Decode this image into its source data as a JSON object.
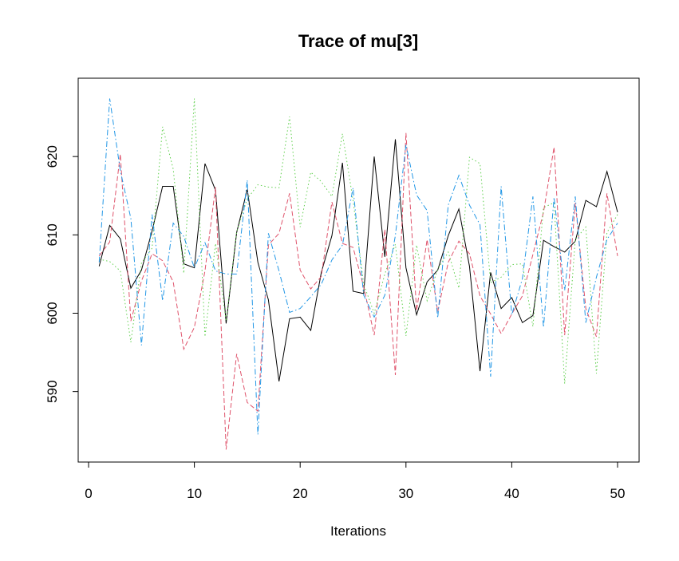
{
  "chart_data": {
    "type": "line",
    "title": "Trace of mu[3]",
    "xlabel": "Iterations",
    "ylabel": "",
    "xlim": [
      0,
      50
    ],
    "ylim": [
      581,
      630
    ],
    "xticks": [
      0,
      10,
      20,
      30,
      40,
      50
    ],
    "yticks": [
      590,
      600,
      610,
      620
    ],
    "grid": false,
    "x": [
      1,
      2,
      3,
      4,
      5,
      6,
      7,
      8,
      9,
      10,
      11,
      12,
      13,
      14,
      15,
      16,
      17,
      18,
      19,
      20,
      21,
      22,
      23,
      24,
      25,
      26,
      27,
      28,
      29,
      30,
      31,
      32,
      33,
      34,
      35,
      36,
      37,
      38,
      39,
      40,
      41,
      42,
      43,
      44,
      45,
      46,
      47,
      48,
      49,
      50
    ],
    "series": [
      {
        "color": "#000000",
        "dash": "solid",
        "values": [
          606,
          611.2,
          609.5,
          603.2,
          605.5,
          610.5,
          616.2,
          616.2,
          606.3,
          605.8,
          619.1,
          615.7,
          598.7,
          610.3,
          615.8,
          606.5,
          601.7,
          591.3,
          599.3,
          599.5,
          597.8,
          605.2,
          609.9,
          619.2,
          602.8,
          602.5,
          620.0,
          607.2,
          622.2,
          605.8,
          599.8,
          604.0,
          605.5,
          609.9,
          613.3,
          606.0,
          592.6,
          605.2,
          600.6,
          602.0,
          598.8,
          599.7,
          609.3,
          608.5,
          607.8,
          609.2,
          614.4,
          613.6,
          618.1,
          612.9
        ]
      },
      {
        "color": "#DF536B",
        "dash": "dashed",
        "values": [
          607.3,
          609.1,
          620.3,
          599.0,
          604.1,
          607.6,
          606.7,
          604.0,
          595.4,
          598.2,
          605.4,
          616.1,
          582.6,
          594.8,
          588.6,
          587.5,
          608.7,
          610.2,
          615.3,
          605.5,
          603.1,
          604.7,
          614.2,
          608.9,
          608.4,
          603.4,
          597.2,
          610.7,
          592.1,
          623.0,
          600.3,
          609.4,
          600.2,
          606.5,
          609.2,
          607.6,
          602.2,
          599.9,
          597.4,
          599.9,
          602.2,
          607.5,
          612.9,
          621.2,
          597.2,
          614.1,
          600.6,
          597.0,
          615.3,
          607.3
        ]
      },
      {
        "color": "#61D04F",
        "dash": "dotted",
        "values": [
          606.9,
          606.6,
          605.4,
          596.3,
          606.4,
          608.3,
          623.8,
          618.4,
          605.1,
          627.4,
          597.0,
          608.9,
          599.0,
          610.4,
          614.6,
          616.4,
          616.1,
          616.0,
          625.1,
          611.0,
          618.0,
          616.8,
          614.9,
          622.9,
          614.4,
          603.7,
          600.0,
          605.0,
          608.8,
          597.1,
          608.7,
          601.6,
          605.6,
          607.8,
          603.2,
          619.9,
          619.1,
          603.9,
          604.6,
          606.2,
          606.3,
          598.3,
          613.5,
          614.1,
          591.0,
          609.4,
          611.0,
          592.3,
          610.3,
          612.6
        ]
      },
      {
        "color": "#2297E6",
        "dash": "dashdot",
        "values": [
          606.5,
          627.4,
          618.2,
          612.1,
          595.9,
          612.6,
          601.6,
          611.5,
          609.8,
          605.8,
          609.0,
          605.4,
          605.0,
          605.0,
          617.0,
          584.5,
          610.2,
          605.4,
          600.1,
          600.6,
          602.1,
          603.7,
          606.8,
          608.7,
          616.0,
          602.3,
          599.5,
          602.3,
          609.9,
          621.5,
          615.1,
          613.1,
          599.4,
          613.8,
          617.6,
          613.8,
          611.3,
          591.9,
          616.2,
          599.8,
          604.4,
          614.9,
          598.2,
          614.8,
          602.9,
          614.9,
          598.8,
          604.6,
          609.4,
          611.5
        ]
      }
    ]
  }
}
